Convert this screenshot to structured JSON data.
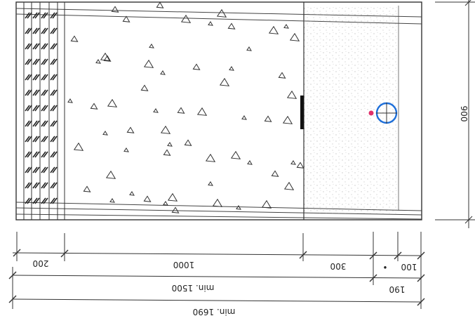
{
  "dimensions": {
    "height_label": "900",
    "row1": [
      "200",
      "1000",
      "300",
      "•",
      "100"
    ],
    "row2": [
      "min. 1500",
      "190"
    ],
    "row3": [
      "min. 1690"
    ]
  },
  "marker": {
    "accent": "#1e6fd9",
    "dot": "#e0306a"
  }
}
